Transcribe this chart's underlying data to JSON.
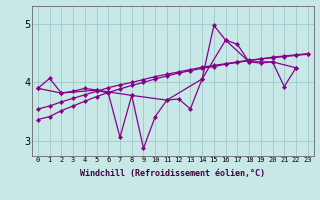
{
  "xlabel": "Windchill (Refroidissement éolien,°C)",
  "xlim": [
    -0.5,
    23.5
  ],
  "ylim": [
    2.75,
    5.3
  ],
  "yticks": [
    3,
    4,
    5
  ],
  "xticks": [
    0,
    1,
    2,
    3,
    4,
    5,
    6,
    7,
    8,
    9,
    10,
    11,
    12,
    13,
    14,
    15,
    16,
    17,
    18,
    19,
    20,
    21,
    22,
    23
  ],
  "bg_color": "#c8e8e8",
  "grid_color": "#a0c8c8",
  "line_color": "#880088",
  "series1": [
    3.9,
    4.07,
    3.82,
    3.85,
    3.9,
    3.87,
    3.82,
    3.07,
    3.78,
    2.88,
    3.42,
    3.7,
    3.72,
    3.55,
    4.06,
    4.97,
    4.72,
    4.65,
    4.35,
    4.33,
    4.35,
    3.93,
    4.25
  ],
  "series2_x": [
    0,
    2,
    5,
    8,
    11,
    14,
    16,
    18,
    20,
    22
  ],
  "series2_y": [
    3.9,
    3.82,
    3.87,
    3.78,
    3.7,
    4.06,
    4.72,
    4.35,
    4.35,
    4.25
  ],
  "series3_x": [
    0,
    1,
    2,
    3,
    4,
    5,
    6,
    7,
    8,
    9,
    10,
    11,
    12,
    13,
    14,
    15,
    16,
    17,
    18,
    19,
    20,
    21,
    22,
    23
  ],
  "series3_y": [
    3.37,
    3.42,
    3.52,
    3.6,
    3.68,
    3.76,
    3.83,
    3.89,
    3.95,
    4.0,
    4.06,
    4.11,
    4.16,
    4.2,
    4.24,
    4.27,
    4.31,
    4.34,
    4.37,
    4.4,
    4.43,
    4.45,
    4.47,
    4.49
  ],
  "series4_x": [
    0,
    1,
    2,
    3,
    4,
    5,
    6,
    7,
    8,
    9,
    10,
    11,
    12,
    13,
    14,
    15,
    16,
    17,
    18,
    19,
    20,
    21,
    22,
    23
  ],
  "series4_y": [
    3.55,
    3.6,
    3.67,
    3.73,
    3.79,
    3.85,
    3.91,
    3.96,
    4.0,
    4.05,
    4.1,
    4.14,
    4.18,
    4.22,
    4.26,
    4.29,
    4.32,
    4.35,
    4.38,
    4.4,
    4.42,
    4.44,
    4.46,
    4.48
  ]
}
